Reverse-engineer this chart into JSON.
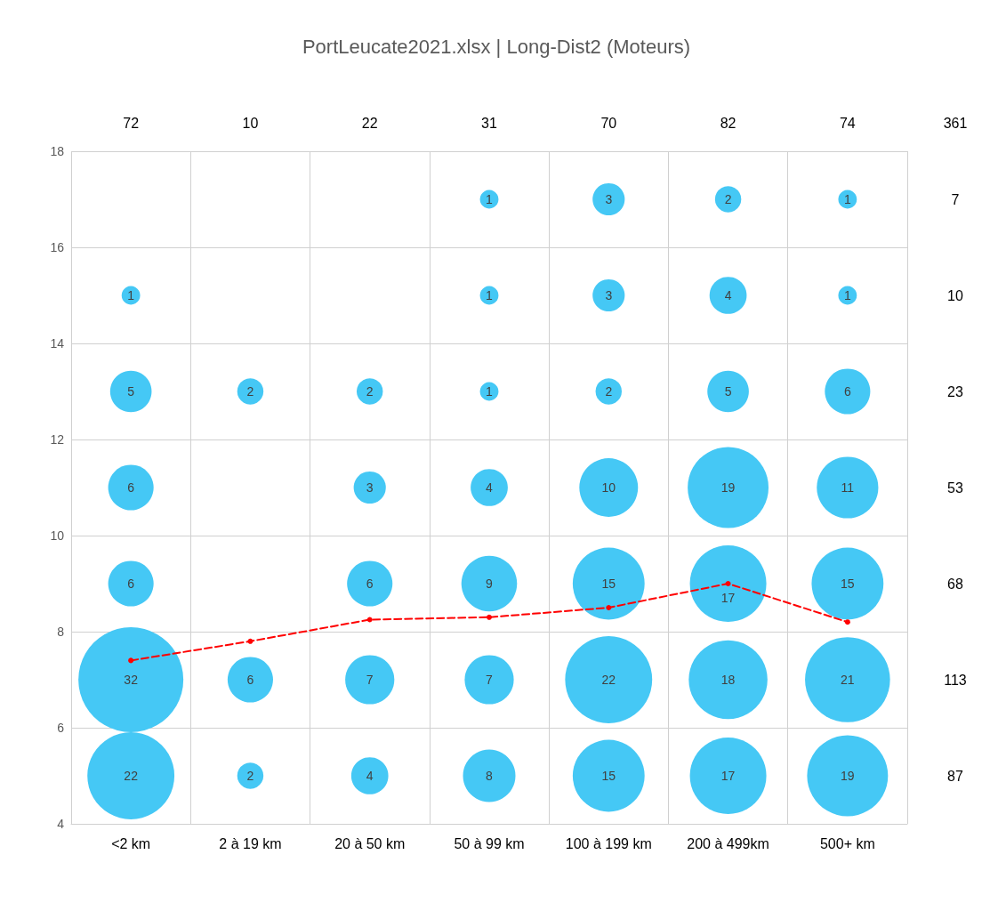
{
  "chart_data": {
    "type": "bubble",
    "title": "PortLeucate2021.xlsx | Long-Dist2 (Moteurs)",
    "categories": [
      "<2 km",
      "2 à 19 km",
      "20 à 50 km",
      "50 à 99 km",
      "100 à 199 km",
      "200 à 499km",
      "500+ km"
    ],
    "ylim": [
      4,
      18
    ],
    "yticks": [
      4,
      6,
      8,
      10,
      12,
      14,
      16,
      18
    ],
    "grid": true,
    "series": [
      {
        "type": "bubble",
        "color": "#45c8f5",
        "x": [
          "<2 km",
          "<2 km",
          "<2 km",
          "<2 km",
          "<2 km",
          "<2 km",
          "2 à 19 km",
          "2 à 19 km",
          "2 à 19 km",
          "20 à 50 km",
          "20 à 50 km",
          "20 à 50 km",
          "20 à 50 km",
          "20 à 50 km",
          "50 à 99 km",
          "50 à 99 km",
          "50 à 99 km",
          "50 à 99 km",
          "50 à 99 km",
          "50 à 99 km",
          "50 à 99 km",
          "100 à 199 km",
          "100 à 199 km",
          "100 à 199 km",
          "100 à 199 km",
          "100 à 199 km",
          "100 à 199 km",
          "100 à 199 km",
          "200 à 499km",
          "200 à 499km",
          "200 à 499km",
          "200 à 499km",
          "200 à 499km",
          "200 à 499km",
          "200 à 499km",
          "500+ km",
          "500+ km",
          "500+ km",
          "500+ km",
          "500+ km",
          "500+ km",
          "500+ km"
        ],
        "values": [
          15,
          13,
          11,
          9,
          7,
          5,
          13,
          7,
          5,
          13,
          11,
          9,
          7,
          5,
          17,
          15,
          13,
          11,
          9,
          7,
          5,
          17,
          15,
          13,
          11,
          9,
          7,
          5,
          17,
          15,
          13,
          11,
          9,
          7,
          5,
          17,
          15,
          13,
          11,
          9,
          7,
          5
        ],
        "sizes": [
          1,
          5,
          6,
          6,
          32,
          22,
          2,
          6,
          2,
          2,
          3,
          6,
          7,
          4,
          1,
          1,
          1,
          4,
          9,
          7,
          8,
          3,
          3,
          2,
          10,
          15,
          22,
          15,
          2,
          4,
          5,
          19,
          17,
          18,
          17,
          1,
          1,
          6,
          11,
          15,
          21,
          19
        ],
        "value_labels": [
          "1",
          "5",
          "6",
          "6",
          "32",
          "22",
          "2",
          "6",
          "2",
          "2",
          "3",
          "6",
          "7",
          "4",
          "1",
          "1",
          "1",
          "4",
          "9",
          "7",
          "8",
          "3",
          "3",
          "2",
          "10",
          "15",
          "22",
          "15",
          "2",
          "4",
          "5",
          "19",
          "17",
          "18",
          "17",
          "1",
          "1",
          "6",
          "11",
          "15",
          "21",
          "19"
        ]
      },
      {
        "type": "line",
        "color": "#ff0000",
        "line_style": "dashed",
        "marker": "circle",
        "values": [
          7.4,
          7.8,
          8.25,
          8.3,
          8.5,
          9.0,
          8.2
        ]
      }
    ],
    "totals": [
      "72",
      "10",
      "22",
      "31",
      "70",
      "82",
      "74"
    ],
    "annotations": [
      "361",
      "7",
      "10",
      "23",
      "53",
      "68",
      "113",
      "87"
    ]
  }
}
